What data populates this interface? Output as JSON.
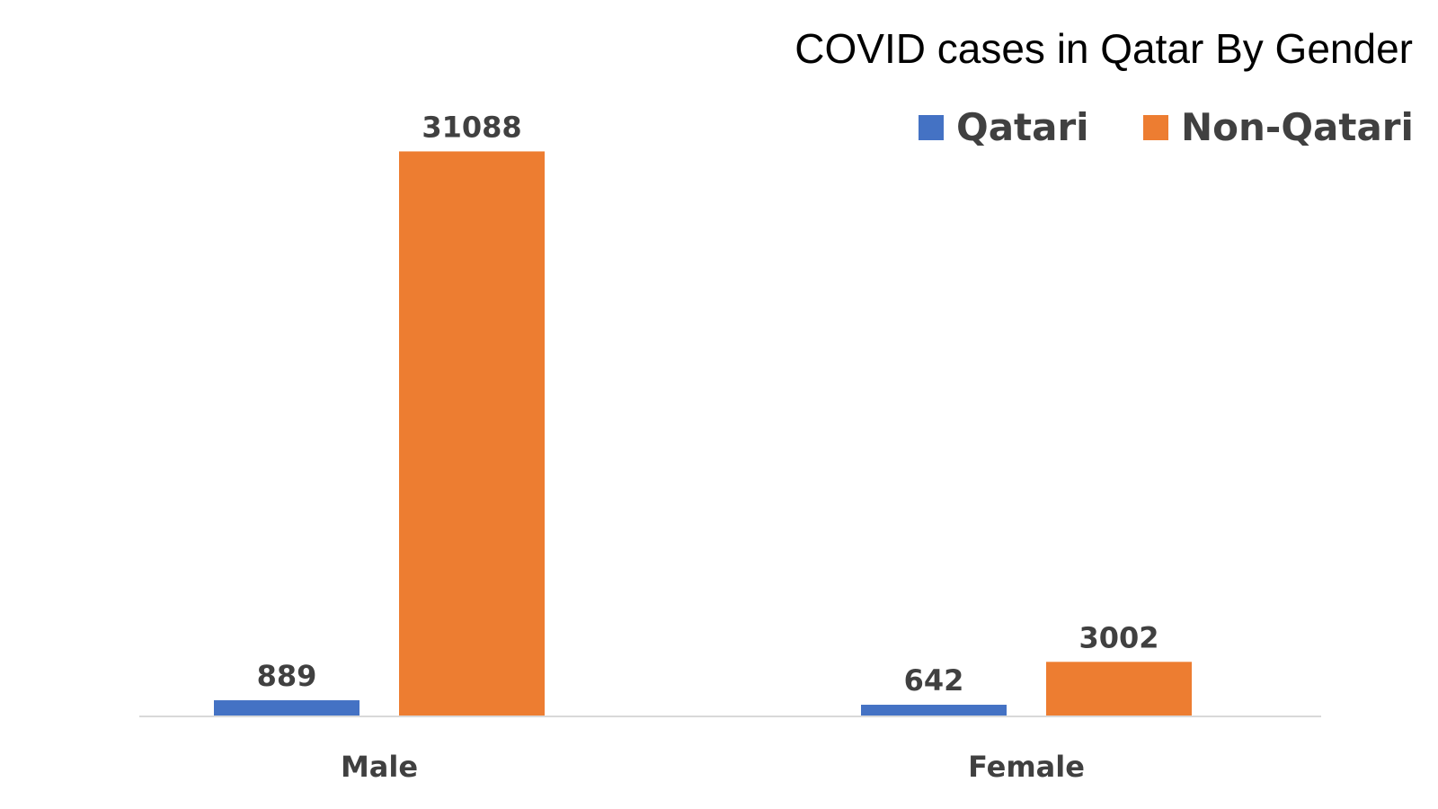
{
  "chart_data": {
    "type": "bar",
    "title": "COVID cases in Qatar By Gender",
    "categories": [
      "Male",
      "Female"
    ],
    "series": [
      {
        "name": "Qatari",
        "values": [
          889,
          642
        ],
        "color": "#4472C4"
      },
      {
        "name": "Non-Qatari",
        "values": [
          31088,
          3002
        ],
        "color": "#ED7D31"
      }
    ],
    "legend_position": "top-right",
    "grid": false,
    "ylim": [
      0,
      32000
    ],
    "axis_line_color": "#D9D9D9"
  }
}
